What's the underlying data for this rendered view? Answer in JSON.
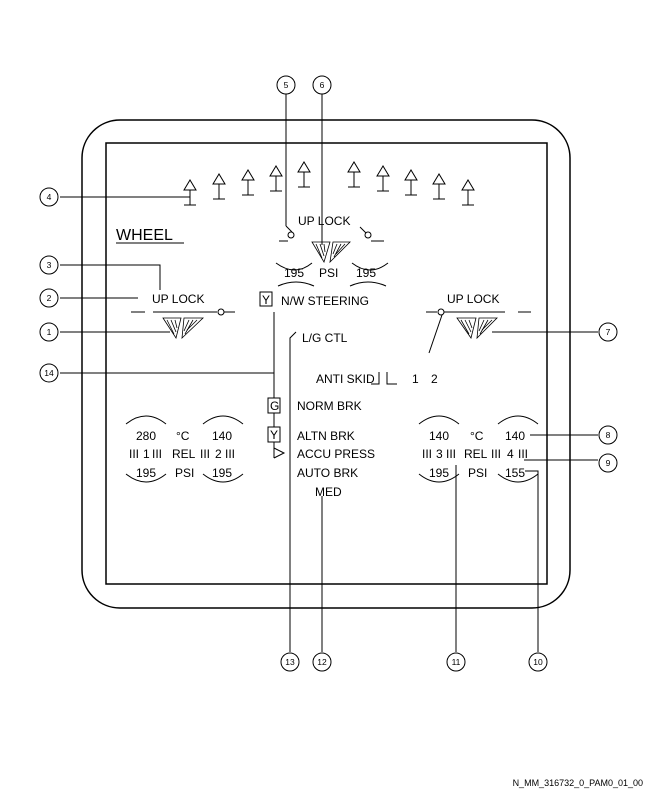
{
  "title": "WHEEL",
  "uplock_labels": {
    "center": "UP LOCK",
    "left": "UP LOCK",
    "right": "UP LOCK"
  },
  "center_gear": {
    "left_value": "195",
    "right_value": "195",
    "unit": "PSI"
  },
  "nw_steering": {
    "box": "Y",
    "label": "N/W STEERING"
  },
  "lg_ctl": "L/G CTL",
  "antiskid": {
    "label": "ANTI SKID",
    "n1": "1",
    "n2": "2"
  },
  "norm_brk": {
    "box": "G",
    "label": "NORM BRK"
  },
  "altn_brk": {
    "box": "Y",
    "label": "ALTN BRK"
  },
  "accu_press": "ACCU PRESS",
  "auto_brk": {
    "label": "AUTO BRK",
    "mode": "MED"
  },
  "left_brakes": {
    "temp_a": "280",
    "temp_unit": "°C",
    "temp_b": "140",
    "wheel_a": "1",
    "rel": "REL",
    "wheel_b": "2",
    "psi_a": "195",
    "psi_unit": "PSI",
    "psi_b": "195"
  },
  "right_brakes": {
    "temp_a": "140",
    "temp_unit": "°C",
    "temp_b": "140",
    "wheel_a": "3",
    "rel": "REL",
    "wheel_b": "4",
    "psi_a": "195",
    "psi_unit": "PSI",
    "psi_b": "155"
  },
  "callouts": [
    "1",
    "2",
    "3",
    "4",
    "5",
    "6",
    "7",
    "8",
    "9",
    "10",
    "11",
    "12",
    "13",
    "14"
  ],
  "reference": "N_MM_316732_0_PAM0_01_00"
}
